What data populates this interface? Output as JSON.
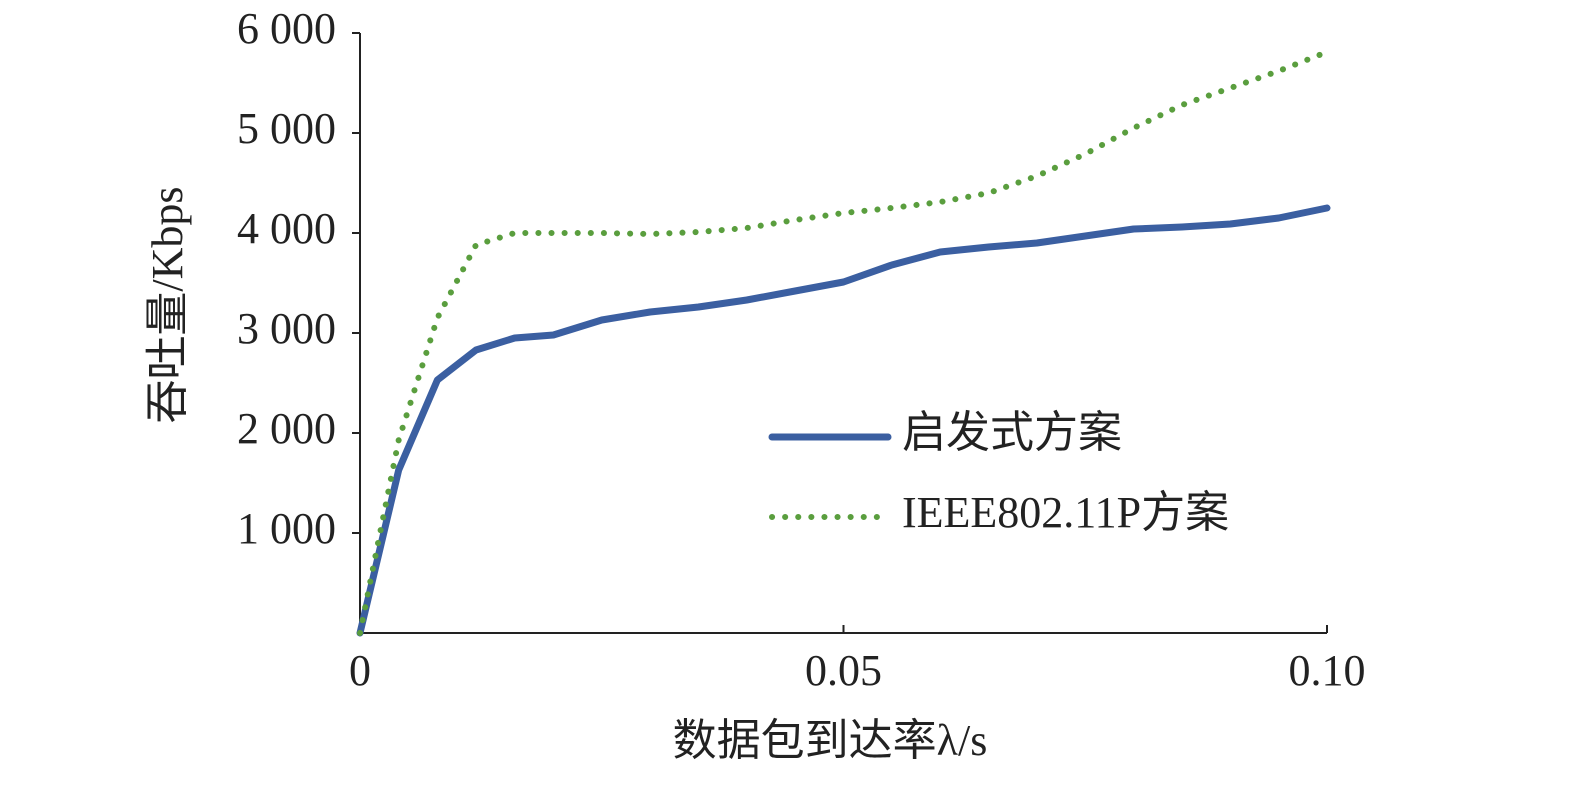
{
  "chart_data": {
    "type": "line",
    "xlabel": "数据包到达率λ/s",
    "ylabel": "吞吐量/Kbps",
    "x": [
      0,
      0.004,
      0.008,
      0.012,
      0.016,
      0.02,
      0.025,
      0.03,
      0.035,
      0.04,
      0.045,
      0.05,
      0.055,
      0.06,
      0.065,
      0.07,
      0.075,
      0.08,
      0.085,
      0.09,
      0.095,
      0.1
    ],
    "series": [
      {
        "name": "启发式方案",
        "color": "#3b5fa1",
        "dash": "solid",
        "values": [
          0,
          1630,
          2530,
          2830,
          2950,
          2980,
          3130,
          3210,
          3260,
          3330,
          3420,
          3510,
          3680,
          3810,
          3860,
          3900,
          3970,
          4040,
          4060,
          4090,
          4150,
          4250
        ]
      },
      {
        "name": "IEEE802.11P方案",
        "color": "#5a9e3e",
        "dash": "dotted",
        "values": [
          0,
          1930,
          3150,
          3880,
          4000,
          4000,
          4000,
          3990,
          4010,
          4050,
          4130,
          4200,
          4250,
          4310,
          4400,
          4570,
          4790,
          5050,
          5280,
          5450,
          5620,
          5810
        ]
      }
    ],
    "xlim": [
      0,
      0.1
    ],
    "xticks": [
      0,
      0.05,
      {
        "value": 0.1,
        "label": "0.10"
      }
    ],
    "ylim": [
      0,
      6000
    ],
    "yticks": [
      {
        "value": 1000,
        "label": "1 000"
      },
      {
        "value": 2000,
        "label": "2 000"
      },
      {
        "value": 3000,
        "label": "3 000"
      },
      {
        "value": 4000,
        "label": "4 000"
      },
      {
        "value": 5000,
        "label": "5 000"
      },
      {
        "value": 6000,
        "label": "6 000"
      }
    ],
    "grid": false,
    "legend": "center right"
  }
}
